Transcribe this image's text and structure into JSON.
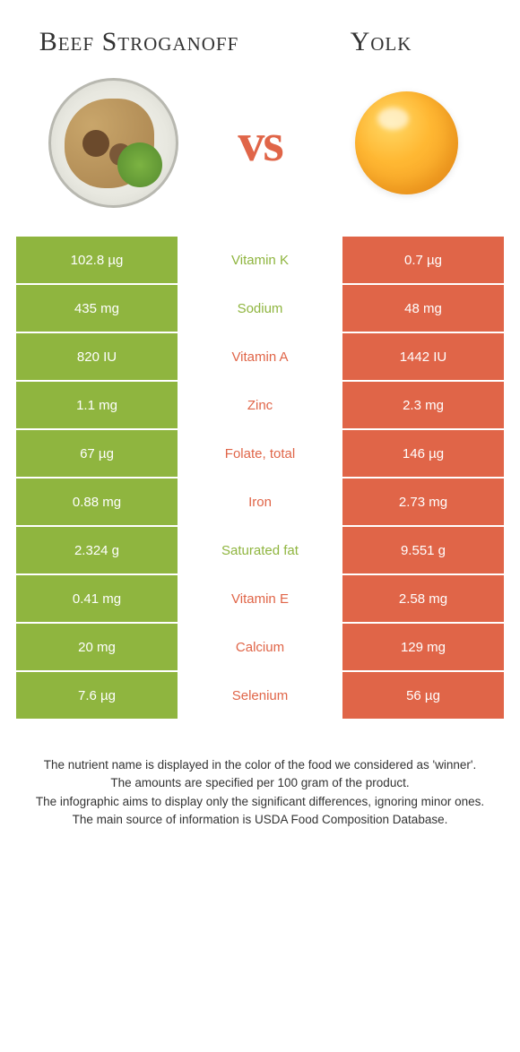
{
  "colors": {
    "left": "#8fb53f",
    "right": "#e06548",
    "left_text": "#8fb53f",
    "right_text": "#e06548"
  },
  "food_left": "Beef Stroganoff",
  "food_right": "Yolk",
  "vs": "vs",
  "rows": [
    {
      "left": "102.8 µg",
      "label": "Vitamin K",
      "right": "0.7 µg",
      "winner": "left"
    },
    {
      "left": "435 mg",
      "label": "Sodium",
      "right": "48 mg",
      "winner": "left"
    },
    {
      "left": "820 IU",
      "label": "Vitamin A",
      "right": "1442 IU",
      "winner": "right"
    },
    {
      "left": "1.1 mg",
      "label": "Zinc",
      "right": "2.3 mg",
      "winner": "right"
    },
    {
      "left": "67 µg",
      "label": "Folate, total",
      "right": "146 µg",
      "winner": "right"
    },
    {
      "left": "0.88 mg",
      "label": "Iron",
      "right": "2.73 mg",
      "winner": "right"
    },
    {
      "left": "2.324 g",
      "label": "Saturated fat",
      "right": "9.551 g",
      "winner": "left"
    },
    {
      "left": "0.41 mg",
      "label": "Vitamin E",
      "right": "2.58 mg",
      "winner": "right"
    },
    {
      "left": "20 mg",
      "label": "Calcium",
      "right": "129 mg",
      "winner": "right"
    },
    {
      "left": "7.6 µg",
      "label": "Selenium",
      "right": "56 µg",
      "winner": "right"
    }
  ],
  "footer": [
    "The nutrient name is displayed in the color of the food we considered as 'winner'.",
    "The amounts are specified per 100 gram of the product.",
    "The infographic aims to display only the significant differences, ignoring minor ones.",
    "The main source of information is USDA Food Composition Database."
  ]
}
